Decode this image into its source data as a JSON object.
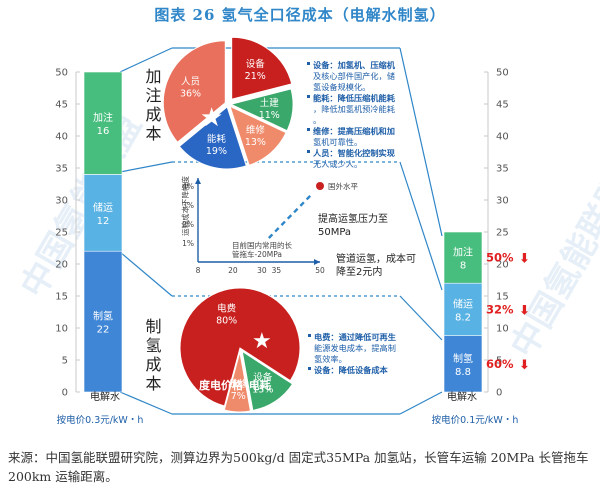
{
  "title": "图表 26   氢气全口径成本（电解水制氢）",
  "source": "来源：中国氢能联盟研究院，测算边界为500kg/d 固定式35MPa 加氢站，长管车运输 20MPa 长管拖车 200km 运输距离。",
  "watermark": "中国氢能联盟",
  "chart_data": [
    {
      "type": "bar",
      "stacked": true,
      "ylim": [
        0,
        50
      ],
      "yticks": [
        0,
        5,
        10,
        15,
        20,
        25,
        30,
        35,
        40,
        45,
        50
      ],
      "bars": [
        {
          "category": "电解水",
          "price_label": "按电价0.3元/kW・h",
          "segments": [
            {
              "name": "制氢",
              "value": 22,
              "color": "#3f86d6"
            },
            {
              "name": "储运",
              "value": 12,
              "color": "#58b2e3"
            },
            {
              "name": "加注",
              "value": 16,
              "color": "#48be7e"
            }
          ]
        },
        {
          "category": "电解水",
          "price_label": "按电价0.1元/kW・h",
          "segments": [
            {
              "name": "制氢",
              "value": 8.8,
              "color": "#3f86d6",
              "reduction": "60%"
            },
            {
              "name": "储运",
              "value": 8.2,
              "color": "#58b2e3",
              "reduction": "32%"
            },
            {
              "name": "加注",
              "value": 8,
              "color": "#48be7e",
              "reduction": "50%"
            }
          ]
        }
      ]
    },
    {
      "type": "pie",
      "group_label": "加注成本",
      "slices": [
        {
          "name": "设备",
          "value": 21,
          "color": "#c8201e"
        },
        {
          "name": "土建",
          "value": 11,
          "color": "#3aa86a"
        },
        {
          "name": "维修",
          "value": 13,
          "color": "#ef8a6a"
        },
        {
          "name": "能耗",
          "value": 19,
          "color": "#2a66c4"
        },
        {
          "name": "人员",
          "value": 36,
          "color": "#e8705c"
        }
      ],
      "notes": [
        {
          "key": "设备：",
          "text": "加氢机、压缩机及核心部件国产化，储氢设备规模化。"
        },
        {
          "key": "能耗：",
          "text": "降低压缩机能耗，降低加氢机预冷能耗。"
        },
        {
          "key": "维修：",
          "text": "提高压缩机和加氢机可靠性。"
        },
        {
          "key": "人员：",
          "text": "智能化控制实现无人或少人。"
        }
      ]
    },
    {
      "type": "scatter",
      "group_label": "储运成本",
      "xticks": [
        8,
        20,
        30,
        35,
        50
      ],
      "yticks": [
        "1%",
        "2%",
        "3%",
        "4%"
      ],
      "ylabel": "运输成本下降幅度",
      "points": [
        {
          "label": "目前国内常用的长管拖车-20MPa",
          "x": 20,
          "y": 0
        },
        {
          "label": "国外水平",
          "x": 50,
          "y": 4
        }
      ],
      "annotations": [
        {
          "text": "提高运氢压力至 50MPa"
        },
        {
          "text": "管道运氢，成本可 降至2元内"
        }
      ]
    },
    {
      "type": "pie",
      "group_label": "制氢成本",
      "slices": [
        {
          "name": "电费",
          "value": 80,
          "color": "#c8201e"
        },
        {
          "name": "设备",
          "value": 13,
          "color": "#3aa86a"
        },
        {
          "name": "维修",
          "value": 7,
          "color": "#ef8a6a"
        }
      ],
      "callout": "度电价格*电耗",
      "notes": [
        {
          "key": "电费：",
          "text": "通过降低可再生能源发电成本，提高制氢效率。"
        },
        {
          "key": "设备：",
          "text": "降低设备成本"
        }
      ]
    }
  ]
}
